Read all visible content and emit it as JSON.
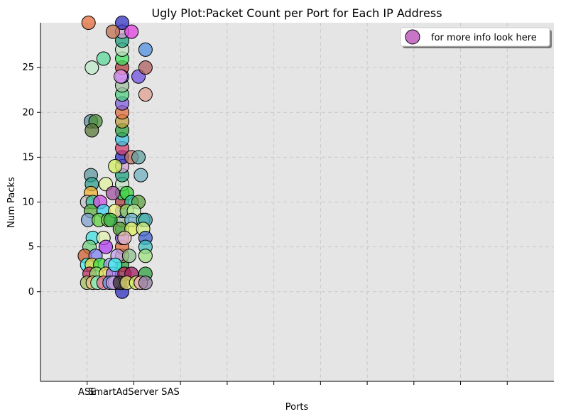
{
  "chart_data": {
    "type": "scatter",
    "title": "Ugly Plot:Packet Count per Port for Each IP Address",
    "xlabel": "Ports",
    "ylabel": "Num Packs",
    "x_tick_labels": [
      "ASE",
      "SmartAdServer SAS"
    ],
    "y_ticks": [
      0,
      5,
      10,
      15,
      20,
      25
    ],
    "ylim": [
      -10,
      30
    ],
    "xlim": [
      -1,
      10
    ],
    "grid": true,
    "legend": {
      "label": "for more info look here",
      "position": "top-right",
      "color": "#c266c2"
    },
    "background_color": "#e5e5e5",
    "points": [
      {
        "x": 0.03,
        "y": 30,
        "c": "#e06a3a"
      },
      {
        "x": 0.1,
        "y": 25,
        "c": "#bfe8c8"
      },
      {
        "x": 0.35,
        "y": 26,
        "c": "#5fd89a"
      },
      {
        "x": 0.08,
        "y": 19,
        "c": "#5f8fa0"
      },
      {
        "x": 0.18,
        "y": 19,
        "c": "#4f8f3a"
      },
      {
        "x": 0.1,
        "y": 18,
        "c": "#5a7a3a"
      },
      {
        "x": 0.08,
        "y": 13,
        "c": "#5f9aa0"
      },
      {
        "x": 0.1,
        "y": 12,
        "c": "#2f9f8f"
      },
      {
        "x": 0.08,
        "y": 11,
        "c": "#f0b030"
      },
      {
        "x": 0.4,
        "y": 12,
        "c": "#e0f0a0"
      },
      {
        "x": 0.0,
        "y": 10,
        "c": "#c0c0c0"
      },
      {
        "x": 0.12,
        "y": 10,
        "c": "#3ac0a0"
      },
      {
        "x": 0.28,
        "y": 10,
        "c": "#d050e0"
      },
      {
        "x": 0.08,
        "y": 9,
        "c": "#60b040"
      },
      {
        "x": 0.35,
        "y": 9,
        "c": "#40d0f0"
      },
      {
        "x": 0.02,
        "y": 8,
        "c": "#80a0d0"
      },
      {
        "x": 0.25,
        "y": 8,
        "c": "#60d040"
      },
      {
        "x": 0.45,
        "y": 8,
        "c": "#90d060"
      },
      {
        "x": 0.12,
        "y": 6,
        "c": "#40e0e0"
      },
      {
        "x": 0.35,
        "y": 6,
        "c": "#e0f0b0"
      },
      {
        "x": 0.05,
        "y": 5,
        "c": "#70d080"
      },
      {
        "x": 0.4,
        "y": 5,
        "c": "#b040f0"
      },
      {
        "x": -0.05,
        "y": 4,
        "c": "#d06030"
      },
      {
        "x": 0.18,
        "y": 4,
        "c": "#8080f0"
      },
      {
        "x": 0.0,
        "y": 3,
        "c": "#40f0f0"
      },
      {
        "x": 0.1,
        "y": 3,
        "c": "#f0d040"
      },
      {
        "x": 0.28,
        "y": 3,
        "c": "#40e040"
      },
      {
        "x": 0.5,
        "y": 3,
        "c": "#a0a0f0"
      },
      {
        "x": 0.05,
        "y": 2,
        "c": "#c03060"
      },
      {
        "x": 0.2,
        "y": 2,
        "c": "#90e070"
      },
      {
        "x": 0.4,
        "y": 2,
        "c": "#f0e060"
      },
      {
        "x": 0.55,
        "y": 2,
        "c": "#a070f0"
      },
      {
        "x": 0.0,
        "y": 1,
        "c": "#a0c060"
      },
      {
        "x": 0.12,
        "y": 1,
        "c": "#f0c080"
      },
      {
        "x": 0.22,
        "y": 1,
        "c": "#80f0c0"
      },
      {
        "x": 0.35,
        "y": 1,
        "c": "#f07090"
      },
      {
        "x": 0.48,
        "y": 1,
        "c": "#60a0f0"
      },
      {
        "x": 0.6,
        "y": 1,
        "c": "#e0a0e0"
      },
      {
        "x": 0.55,
        "y": 29,
        "c": "#c07050"
      },
      {
        "x": 0.95,
        "y": 29,
        "c": "#e040e0"
      },
      {
        "x": 0.72,
        "y": 24,
        "c": "#f0a0f0"
      },
      {
        "x": 1.1,
        "y": 24,
        "c": "#7050e0"
      },
      {
        "x": 1.25,
        "y": 27,
        "c": "#5090e0"
      },
      {
        "x": 1.25,
        "y": 25,
        "c": "#b06060"
      },
      {
        "x": 1.25,
        "y": 22,
        "c": "#e0a090"
      },
      {
        "x": 0.6,
        "y": 14,
        "c": "#d0f060"
      },
      {
        "x": 0.95,
        "y": 15,
        "c": "#c07060"
      },
      {
        "x": 1.1,
        "y": 15,
        "c": "#60a0a0"
      },
      {
        "x": 1.15,
        "y": 13,
        "c": "#70b0c0"
      },
      {
        "x": 0.55,
        "y": 11,
        "c": "#a050a0"
      },
      {
        "x": 0.85,
        "y": 11,
        "c": "#40d040"
      },
      {
        "x": 0.95,
        "y": 10,
        "c": "#30c0a0"
      },
      {
        "x": 1.1,
        "y": 10,
        "c": "#60a040"
      },
      {
        "x": 0.6,
        "y": 9,
        "c": "#f0f080"
      },
      {
        "x": 0.85,
        "y": 9,
        "c": "#a0e060"
      },
      {
        "x": 1.0,
        "y": 9,
        "c": "#c0f0a0"
      },
      {
        "x": 0.5,
        "y": 8,
        "c": "#30b040"
      },
      {
        "x": 0.95,
        "y": 8,
        "c": "#70b0d0"
      },
      {
        "x": 1.2,
        "y": 8,
        "c": "#40e0a0"
      },
      {
        "x": 1.25,
        "y": 8,
        "c": "#50a0b0"
      },
      {
        "x": 0.7,
        "y": 7,
        "c": "#60a040"
      },
      {
        "x": 0.95,
        "y": 7,
        "c": "#e0f060"
      },
      {
        "x": 1.2,
        "y": 7,
        "c": "#d0f080"
      },
      {
        "x": 0.8,
        "y": 6,
        "c": "#f0c0c0"
      },
      {
        "x": 1.25,
        "y": 6,
        "c": "#4060d0"
      },
      {
        "x": 1.25,
        "y": 5,
        "c": "#40c0c0"
      },
      {
        "x": 0.65,
        "y": 4,
        "c": "#c0a0f0"
      },
      {
        "x": 0.9,
        "y": 4,
        "c": "#90c090"
      },
      {
        "x": 1.25,
        "y": 4,
        "c": "#a0e080"
      },
      {
        "x": 0.6,
        "y": 3,
        "c": "#40f0f0"
      },
      {
        "x": 0.8,
        "y": 2,
        "c": "#c03050"
      },
      {
        "x": 0.95,
        "y": 2,
        "c": "#a02060"
      },
      {
        "x": 1.25,
        "y": 2,
        "c": "#30a040"
      },
      {
        "x": 0.55,
        "y": 1,
        "c": "#c0a0e0"
      },
      {
        "x": 0.7,
        "y": 1,
        "c": "#303030"
      },
      {
        "x": 0.85,
        "y": 1,
        "c": "#e0e070"
      },
      {
        "x": 1.05,
        "y": 1,
        "c": "#d0f060"
      },
      {
        "x": 1.15,
        "y": 1,
        "c": "#f0a0c0"
      },
      {
        "x": 1.25,
        "y": 1,
        "c": "#9080a0"
      }
    ]
  }
}
